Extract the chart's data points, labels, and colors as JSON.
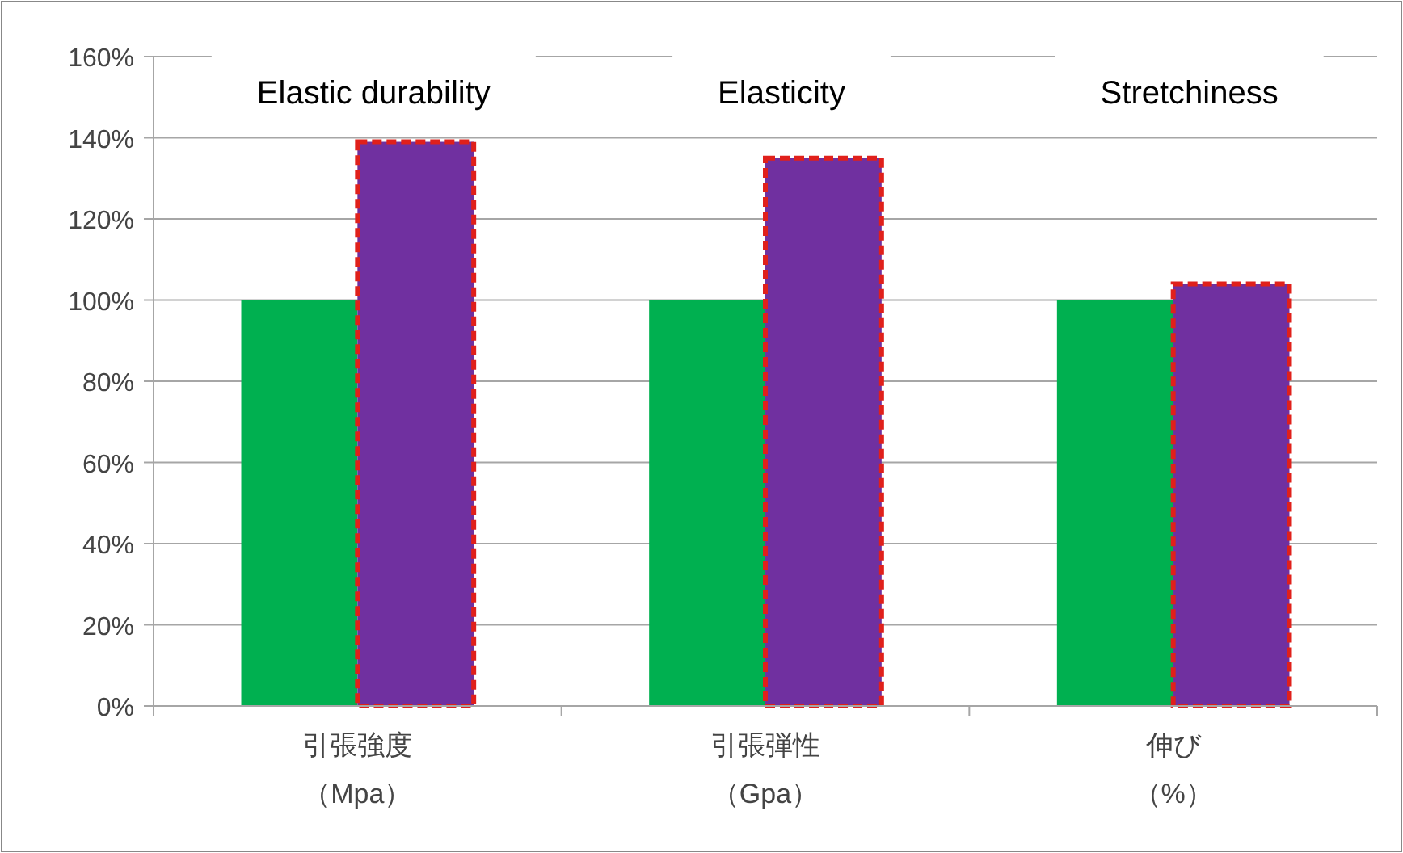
{
  "chart_data": {
    "type": "bar",
    "categories": [
      "引張強度（Mpa）",
      "引張弾性（Gpa）",
      "伸び（%）"
    ],
    "series": [
      {
        "color": "#00b050",
        "values": [
          100,
          100,
          100
        ]
      },
      {
        "color": "#7030a0",
        "values": [
          139,
          135,
          104
        ]
      }
    ],
    "ylim": [
      0,
      160
    ],
    "yticks": [
      {
        "value": 0,
        "label": "0%"
      },
      {
        "value": 20,
        "label": "20%"
      },
      {
        "value": 40,
        "label": "40%"
      },
      {
        "value": 60,
        "label": "60%"
      },
      {
        "value": 80,
        "label": "80%"
      },
      {
        "value": 100,
        "label": "100%"
      },
      {
        "value": 120,
        "label": "120%"
      },
      {
        "value": 140,
        "label": "140%"
      },
      {
        "value": 160,
        "label": "160%"
      }
    ],
    "grid": "y",
    "annotations": [
      "Elastic durability",
      "Elasticity",
      "Stretchiness"
    ]
  }
}
